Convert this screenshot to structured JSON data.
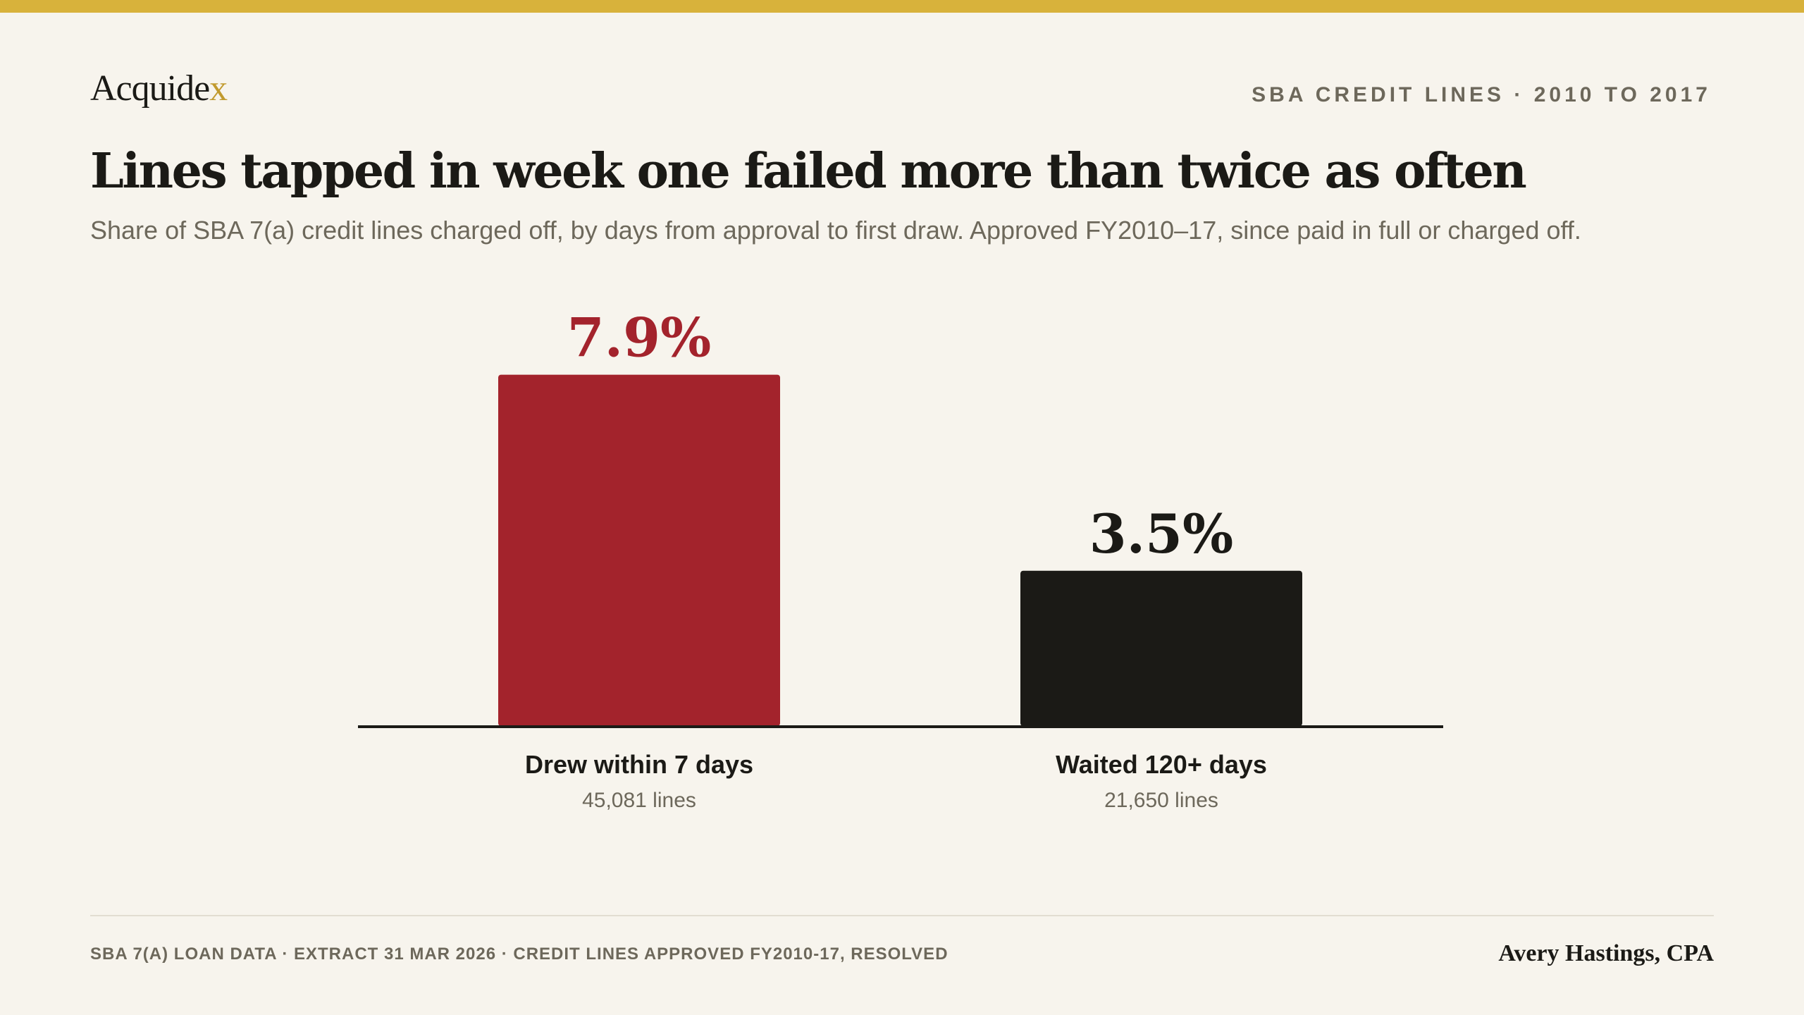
{
  "brand": {
    "name_main": "Acquide",
    "name_accent": "x"
  },
  "header": {
    "kicker": "SBA CREDIT LINES · 2010 TO 2017",
    "headline": "Lines tapped in week one failed more than twice as often",
    "subhead": "Share of SBA 7(a) credit lines charged off, by days from approval to first draw. Approved FY2010–17, since paid in full or charged off."
  },
  "colors": {
    "background": "#f7f4ed",
    "top_rule": "#d8b23b",
    "highlight_bar": "#a3232c",
    "base_bar": "#1b1a16",
    "muted_text": "#6d685b"
  },
  "chart_data": {
    "type": "bar",
    "title": "",
    "xlabel": "",
    "ylabel": "",
    "ylim": [
      0,
      8.4
    ],
    "grid": false,
    "categories": [
      "Drew within 7 days",
      "Waited 120+ days"
    ],
    "values": [
      7.9,
      3.5
    ],
    "value_labels": [
      "7.9%",
      "3.5%"
    ],
    "sublabels": [
      "45,081 lines",
      "21,650 lines"
    ],
    "bar_colors": [
      "#a3232c",
      "#1b1a16"
    ],
    "value_label_colors": [
      "#a3232c",
      "#1b1a16"
    ]
  },
  "footer": {
    "source": "SBA 7(A) LOAN DATA · EXTRACT 31 MAR 2026 · CREDIT LINES APPROVED FY2010-17, RESOLVED",
    "author": "Avery Hastings, CPA"
  }
}
